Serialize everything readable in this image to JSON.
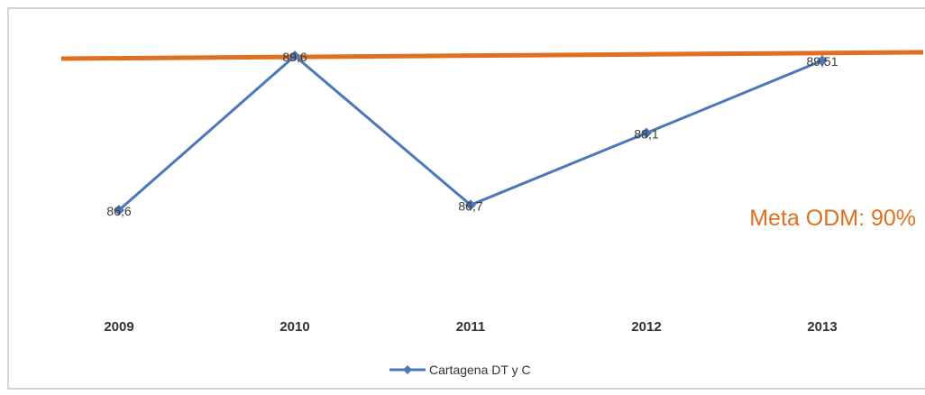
{
  "chart_data": {
    "type": "line",
    "categories": [
      "2009",
      "2010",
      "2011",
      "2012",
      "2013"
    ],
    "series": [
      {
        "name": "Cartagena DT y C",
        "values": [
          86.6,
          89.6,
          86.7,
          88.1,
          89.51
        ],
        "labels": [
          "86,6",
          "89,6",
          "86,7",
          "88,1",
          "89,51"
        ],
        "color": "#4a78b8"
      }
    ],
    "target": {
      "label": "Meta ODM: 90%",
      "value": 90,
      "color": "#e07020"
    },
    "ylim": [
      85.4,
      90.3
    ],
    "grid": false,
    "legend": "bottom"
  }
}
